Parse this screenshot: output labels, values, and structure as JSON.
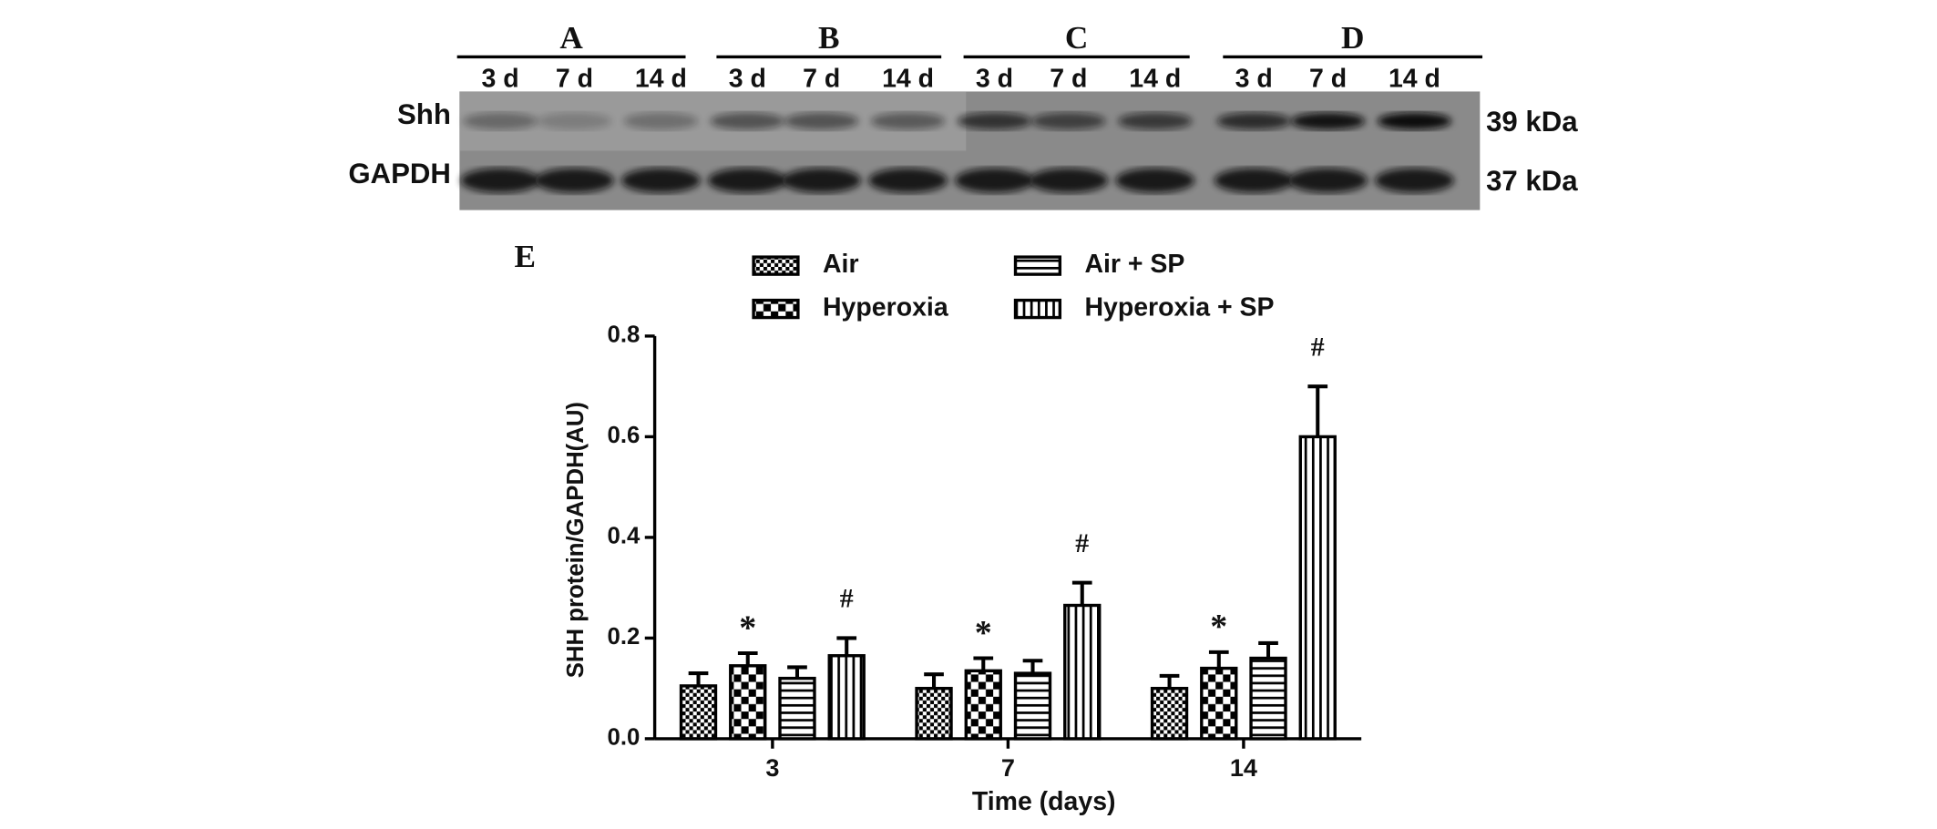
{
  "blot": {
    "groups": [
      {
        "label": "A",
        "lanes": [
          "3 d",
          "7 d",
          "14 d"
        ]
      },
      {
        "label": "B",
        "lanes": [
          "3 d",
          "7 d",
          "14 d"
        ]
      },
      {
        "label": "C",
        "lanes": [
          "3 d",
          "7 d",
          "14 d"
        ]
      },
      {
        "label": "D",
        "lanes": [
          "3 d",
          "7 d",
          "14 d"
        ]
      }
    ],
    "rows": [
      {
        "label": "Shh",
        "size": "39 kDa"
      },
      {
        "label": "GAPDH",
        "size": "37 kDa"
      }
    ]
  },
  "chart_data": {
    "type": "bar",
    "panel_label": "E",
    "ylabel": "SHH protein/GAPDH(AU)",
    "xlabel": "Time (days)",
    "categories": [
      "3",
      "7",
      "14"
    ],
    "series": [
      {
        "name": "Air",
        "color": "#000000",
        "pattern": "checker-fine",
        "values": [
          0.105,
          0.1,
          0.1
        ],
        "errors": [
          0.025,
          0.028,
          0.025
        ]
      },
      {
        "name": "Hyperoxia",
        "color": "#000000",
        "pattern": "checker",
        "values": [
          0.145,
          0.135,
          0.14
        ],
        "errors": [
          0.025,
          0.025,
          0.032
        ]
      },
      {
        "name": "Air + SP",
        "color": "#000000",
        "pattern": "horizontal",
        "values": [
          0.12,
          0.13,
          0.16
        ],
        "errors": [
          0.022,
          0.025,
          0.03
        ]
      },
      {
        "name": "Hyperoxia + SP",
        "color": "#000000",
        "pattern": "vertical",
        "values": [
          0.165,
          0.265,
          0.6
        ],
        "errors": [
          0.035,
          0.045,
          0.1
        ]
      }
    ],
    "annotations": [
      {
        "text": "*",
        "category": "3",
        "series": "Hyperoxia"
      },
      {
        "text": "#",
        "category": "3",
        "series": "Hyperoxia + SP"
      },
      {
        "text": "*",
        "category": "7",
        "series": "Hyperoxia"
      },
      {
        "text": "#",
        "category": "7",
        "series": "Hyperoxia + SP"
      },
      {
        "text": "*",
        "category": "14",
        "series": "Hyperoxia"
      },
      {
        "text": "#",
        "category": "14",
        "series": "Hyperoxia + SP"
      }
    ],
    "ylim": [
      0,
      0.8
    ],
    "yticks": [
      {
        "value": 0,
        "label": "0.0"
      },
      0.2,
      0.4,
      0.6,
      0.8
    ]
  }
}
